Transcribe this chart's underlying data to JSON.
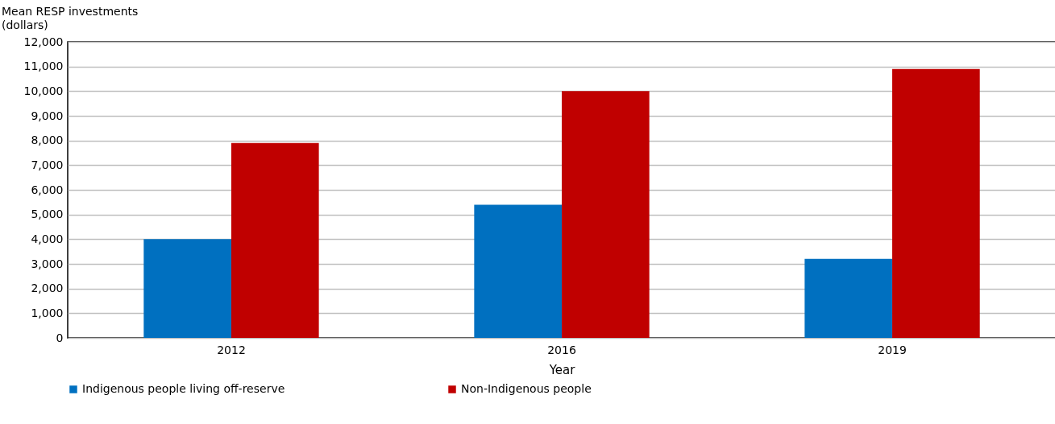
{
  "chart_data": {
    "type": "bar",
    "xlabel": "Year",
    "ylabel": "Mean RESP investments (dollars)",
    "categories": [
      "2012",
      "2016",
      "2019"
    ],
    "series": [
      {
        "name": "Indigenous people living off-reserve",
        "color": "#0070c0",
        "values": [
          4000,
          5400,
          3200
        ]
      },
      {
        "name": "Non-Indigenous people",
        "color": "#c00000",
        "values": [
          7900,
          10000,
          10900
        ]
      }
    ],
    "ylim": [
      0,
      12000
    ],
    "yticks": [
      {
        "value": 0,
        "label": "0"
      },
      {
        "value": 1000,
        "label": "1,000"
      },
      {
        "value": 2000,
        "label": "2,000"
      },
      {
        "value": 3000,
        "label": "3,000"
      },
      {
        "value": 4000,
        "label": "4,000"
      },
      {
        "value": 5000,
        "label": "5,000"
      },
      {
        "value": 6000,
        "label": "6,000"
      },
      {
        "value": 7000,
        "label": "7,000"
      },
      {
        "value": 8000,
        "label": "8,000"
      },
      {
        "value": 9000,
        "label": "9,000"
      },
      {
        "value": 10000,
        "label": "10,000"
      },
      {
        "value": 11000,
        "label": "11,000"
      },
      {
        "value": 12000,
        "label": "12,000"
      }
    ],
    "grid": "y",
    "legend": "bottom"
  }
}
